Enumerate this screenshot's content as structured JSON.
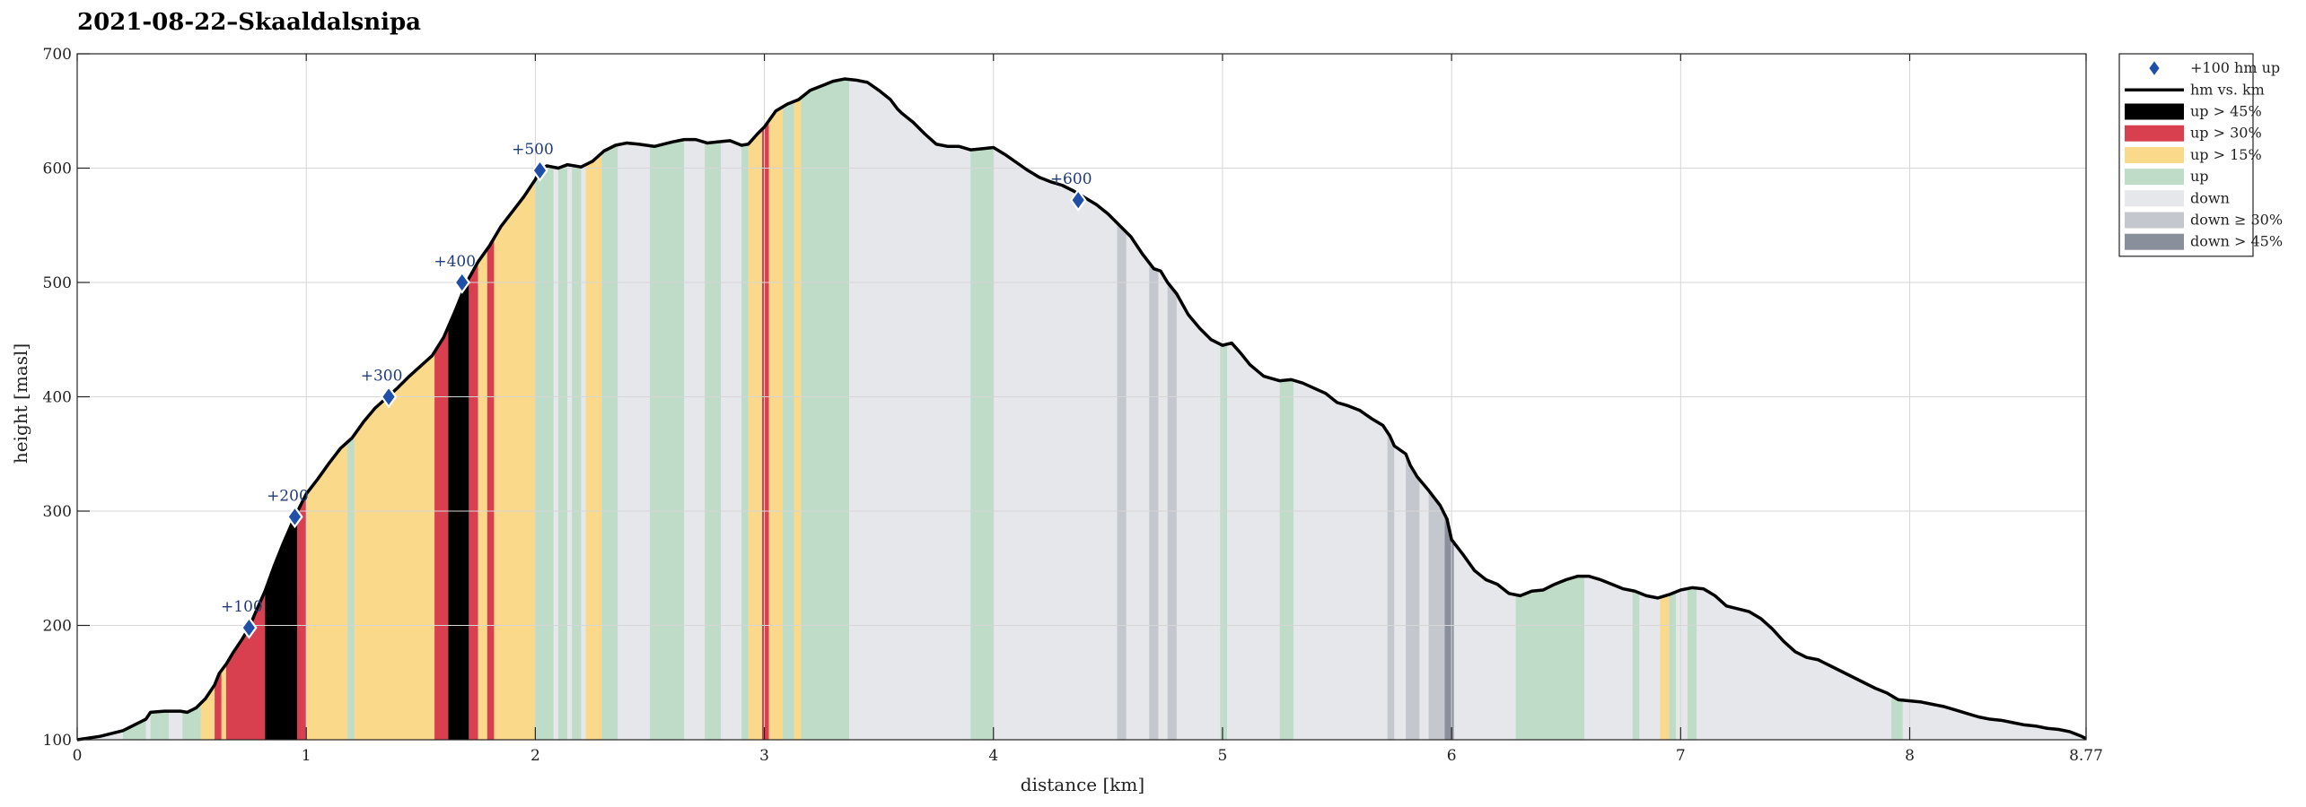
{
  "chart_data": {
    "type": "area",
    "title": "2021-08-22–Skaaldalsnipa",
    "xlabel": "distance [km]",
    "ylabel": "height [masl]",
    "xlim": [
      0,
      8.77
    ],
    "ylim": [
      100,
      700
    ],
    "x_ticks": [
      0,
      1,
      2,
      3,
      4,
      5,
      6,
      7,
      8,
      8.77
    ],
    "x_tick_labels": [
      "0",
      "1",
      "2",
      "3",
      "4",
      "5",
      "6",
      "7",
      "8",
      "8.77"
    ],
    "y_ticks": [
      100,
      200,
      300,
      400,
      500,
      600,
      700
    ],
    "grid": true,
    "legend_placement": "outside top-right",
    "legend": [
      {
        "label": "+100 hm up",
        "kind": "marker",
        "color": "#1f4fa8"
      },
      {
        "label": "hm vs. km",
        "kind": "line",
        "color": "#000000"
      },
      {
        "label": "up > 45%",
        "kind": "patch",
        "color": "#000000"
      },
      {
        "label": "up > 30%",
        "kind": "patch",
        "color": "#d9404f"
      },
      {
        "label": "up > 15%",
        "kind": "patch",
        "color": "#fbd98a"
      },
      {
        "label": "up",
        "kind": "patch",
        "color": "#bfdcc8"
      },
      {
        "label": "down",
        "kind": "patch",
        "color": "#e6e7ea"
      },
      {
        "label": "down ≥ 30%",
        "kind": "patch",
        "color": "#c5c7ce"
      },
      {
        "label": "down > 45%",
        "kind": "patch",
        "color": "#8a8f9c"
      }
    ],
    "colors": {
      "up45": "#000000",
      "up30": "#d9404f",
      "up15": "#fbd98a",
      "up": "#bfdcc8",
      "down": "#e6e7ea",
      "down30": "#c5c7ce",
      "down45": "#8a8f9c",
      "marker": "#1f4fa8",
      "line": "#000000"
    },
    "profile": [
      [
        0,
        100
      ],
      [
        0.1,
        103
      ],
      [
        0.2,
        108
      ],
      [
        0.3,
        118
      ],
      [
        0.32,
        124
      ],
      [
        0.38,
        125
      ],
      [
        0.45,
        125
      ],
      [
        0.48,
        124
      ],
      [
        0.52,
        128
      ],
      [
        0.56,
        136
      ],
      [
        0.6,
        148
      ],
      [
        0.62,
        158
      ],
      [
        0.65,
        166
      ],
      [
        0.68,
        176
      ],
      [
        0.72,
        188
      ],
      [
        0.75,
        198
      ],
      [
        0.78,
        212
      ],
      [
        0.82,
        230
      ],
      [
        0.86,
        252
      ],
      [
        0.9,
        272
      ],
      [
        0.95,
        295
      ],
      [
        1.0,
        315
      ],
      [
        1.05,
        328
      ],
      [
        1.1,
        342
      ],
      [
        1.15,
        355
      ],
      [
        1.2,
        364
      ],
      [
        1.25,
        378
      ],
      [
        1.3,
        390
      ],
      [
        1.35,
        399
      ],
      [
        1.4,
        408
      ],
      [
        1.45,
        418
      ],
      [
        1.5,
        427
      ],
      [
        1.55,
        436
      ],
      [
        1.6,
        452
      ],
      [
        1.65,
        475
      ],
      [
        1.7,
        500
      ],
      [
        1.75,
        518
      ],
      [
        1.8,
        532
      ],
      [
        1.85,
        549
      ],
      [
        1.9,
        562
      ],
      [
        1.95,
        575
      ],
      [
        2.0,
        590
      ],
      [
        2.02,
        598
      ],
      [
        2.05,
        602
      ],
      [
        2.1,
        600
      ],
      [
        2.14,
        603
      ],
      [
        2.2,
        601
      ],
      [
        2.25,
        606
      ],
      [
        2.3,
        615
      ],
      [
        2.35,
        620
      ],
      [
        2.4,
        622
      ],
      [
        2.45,
        621
      ],
      [
        2.52,
        619
      ],
      [
        2.6,
        623
      ],
      [
        2.65,
        625
      ],
      [
        2.7,
        625
      ],
      [
        2.75,
        622
      ],
      [
        2.8,
        623
      ],
      [
        2.85,
        624
      ],
      [
        2.9,
        620
      ],
      [
        2.93,
        621
      ],
      [
        2.97,
        630
      ],
      [
        3.0,
        636
      ],
      [
        3.05,
        650
      ],
      [
        3.1,
        656
      ],
      [
        3.15,
        660
      ],
      [
        3.2,
        668
      ],
      [
        3.25,
        672
      ],
      [
        3.3,
        676
      ],
      [
        3.35,
        678
      ],
      [
        3.4,
        677
      ],
      [
        3.45,
        675
      ],
      [
        3.5,
        668
      ],
      [
        3.55,
        660
      ],
      [
        3.58,
        652
      ],
      [
        3.6,
        648
      ],
      [
        3.65,
        640
      ],
      [
        3.7,
        630
      ],
      [
        3.75,
        621
      ],
      [
        3.8,
        619
      ],
      [
        3.85,
        619
      ],
      [
        3.9,
        616
      ],
      [
        3.95,
        617
      ],
      [
        4.0,
        618
      ],
      [
        4.05,
        612
      ],
      [
        4.1,
        605
      ],
      [
        4.15,
        598
      ],
      [
        4.2,
        592
      ],
      [
        4.25,
        588
      ],
      [
        4.3,
        585
      ],
      [
        4.35,
        580
      ],
      [
        4.4,
        574
      ],
      [
        4.45,
        568
      ],
      [
        4.5,
        560
      ],
      [
        4.55,
        550
      ],
      [
        4.6,
        540
      ],
      [
        4.65,
        525
      ],
      [
        4.7,
        512
      ],
      [
        4.73,
        510
      ],
      [
        4.76,
        500
      ],
      [
        4.8,
        490
      ],
      [
        4.85,
        472
      ],
      [
        4.9,
        460
      ],
      [
        4.95,
        450
      ],
      [
        5.0,
        445
      ],
      [
        5.04,
        447
      ],
      [
        5.08,
        438
      ],
      [
        5.12,
        428
      ],
      [
        5.18,
        418
      ],
      [
        5.25,
        414
      ],
      [
        5.3,
        415
      ],
      [
        5.35,
        412
      ],
      [
        5.45,
        403
      ],
      [
        5.5,
        395
      ],
      [
        5.55,
        392
      ],
      [
        5.6,
        388
      ],
      [
        5.65,
        381
      ],
      [
        5.7,
        375
      ],
      [
        5.73,
        366
      ],
      [
        5.75,
        357
      ],
      [
        5.8,
        350
      ],
      [
        5.82,
        340
      ],
      [
        5.85,
        330
      ],
      [
        5.9,
        318
      ],
      [
        5.95,
        305
      ],
      [
        5.98,
        293
      ],
      [
        6.0,
        275
      ],
      [
        6.05,
        262
      ],
      [
        6.1,
        248
      ],
      [
        6.15,
        240
      ],
      [
        6.2,
        236
      ],
      [
        6.25,
        228
      ],
      [
        6.3,
        226
      ],
      [
        6.35,
        230
      ],
      [
        6.4,
        231
      ],
      [
        6.45,
        236
      ],
      [
        6.5,
        240
      ],
      [
        6.55,
        243
      ],
      [
        6.6,
        243
      ],
      [
        6.65,
        240
      ],
      [
        6.7,
        236
      ],
      [
        6.75,
        232
      ],
      [
        6.8,
        230
      ],
      [
        6.85,
        226
      ],
      [
        6.9,
        224
      ],
      [
        6.95,
        227
      ],
      [
        7.0,
        231
      ],
      [
        7.05,
        233
      ],
      [
        7.1,
        232
      ],
      [
        7.15,
        226
      ],
      [
        7.2,
        217
      ],
      [
        7.3,
        212
      ],
      [
        7.35,
        206
      ],
      [
        7.4,
        197
      ],
      [
        7.45,
        186
      ],
      [
        7.5,
        177
      ],
      [
        7.55,
        172
      ],
      [
        7.6,
        170
      ],
      [
        7.65,
        165
      ],
      [
        7.7,
        160
      ],
      [
        7.75,
        155
      ],
      [
        7.8,
        150
      ],
      [
        7.85,
        145
      ],
      [
        7.9,
        141
      ],
      [
        7.95,
        135
      ],
      [
        8.0,
        134
      ],
      [
        8.05,
        133
      ],
      [
        8.1,
        131
      ],
      [
        8.15,
        129
      ],
      [
        8.2,
        126
      ],
      [
        8.25,
        123
      ],
      [
        8.3,
        120
      ],
      [
        8.35,
        118
      ],
      [
        8.4,
        117
      ],
      [
        8.45,
        115
      ],
      [
        8.5,
        113
      ],
      [
        8.55,
        112
      ],
      [
        8.6,
        110
      ],
      [
        8.65,
        109
      ],
      [
        8.7,
        107
      ],
      [
        8.75,
        103
      ],
      [
        8.77,
        101
      ]
    ],
    "segments": [
      [
        0.2,
        0.3,
        "up"
      ],
      [
        0.3,
        0.32,
        "down"
      ],
      [
        0.32,
        0.36,
        "up"
      ],
      [
        0.36,
        0.4,
        "up"
      ],
      [
        0.4,
        0.46,
        "down"
      ],
      [
        0.46,
        0.54,
        "up"
      ],
      [
        0.54,
        0.6,
        "up15"
      ],
      [
        0.6,
        0.63,
        "up30"
      ],
      [
        0.63,
        0.65,
        "up15"
      ],
      [
        0.65,
        0.82,
        "up30"
      ],
      [
        0.82,
        0.96,
        "up45"
      ],
      [
        0.96,
        1.0,
        "up30"
      ],
      [
        1.0,
        1.18,
        "up15"
      ],
      [
        1.18,
        1.21,
        "up"
      ],
      [
        1.21,
        1.56,
        "up15"
      ],
      [
        1.56,
        1.62,
        "up30"
      ],
      [
        1.62,
        1.71,
        "up45"
      ],
      [
        1.71,
        1.75,
        "up30"
      ],
      [
        1.75,
        1.79,
        "up15"
      ],
      [
        1.79,
        1.82,
        "up30"
      ],
      [
        1.82,
        2.0,
        "up15"
      ],
      [
        2.0,
        2.08,
        "up"
      ],
      [
        2.08,
        2.1,
        "down"
      ],
      [
        2.1,
        2.14,
        "up"
      ],
      [
        2.14,
        2.16,
        "down"
      ],
      [
        2.16,
        2.2,
        "up"
      ],
      [
        2.2,
        2.22,
        "down"
      ],
      [
        2.22,
        2.29,
        "up15"
      ],
      [
        2.29,
        2.36,
        "up"
      ],
      [
        2.36,
        2.5,
        "down"
      ],
      [
        2.5,
        2.65,
        "up"
      ],
      [
        2.65,
        2.74,
        "down"
      ],
      [
        2.74,
        2.81,
        "up"
      ],
      [
        2.81,
        2.9,
        "down"
      ],
      [
        2.9,
        2.93,
        "up"
      ],
      [
        2.93,
        2.99,
        "up15"
      ],
      [
        2.99,
        3.02,
        "up30"
      ],
      [
        3.02,
        3.08,
        "up15"
      ],
      [
        3.08,
        3.13,
        "up"
      ],
      [
        3.13,
        3.16,
        "up15"
      ],
      [
        3.16,
        3.37,
        "up"
      ],
      [
        3.37,
        3.9,
        "down"
      ],
      [
        3.9,
        4.0,
        "up"
      ],
      [
        4.0,
        4.54,
        "down"
      ],
      [
        4.54,
        4.58,
        "down30"
      ],
      [
        4.58,
        4.68,
        "down"
      ],
      [
        4.68,
        4.72,
        "down30"
      ],
      [
        4.72,
        4.76,
        "down"
      ],
      [
        4.76,
        4.8,
        "down30"
      ],
      [
        4.8,
        4.99,
        "down"
      ],
      [
        4.99,
        5.02,
        "up"
      ],
      [
        5.02,
        5.25,
        "down"
      ],
      [
        5.25,
        5.31,
        "up"
      ],
      [
        5.31,
        5.72,
        "down"
      ],
      [
        5.72,
        5.75,
        "down30"
      ],
      [
        5.75,
        5.8,
        "down"
      ],
      [
        5.8,
        5.86,
        "down30"
      ],
      [
        5.86,
        5.9,
        "down"
      ],
      [
        5.9,
        5.97,
        "down30"
      ],
      [
        5.97,
        6.01,
        "down45"
      ],
      [
        6.01,
        6.28,
        "down"
      ],
      [
        6.28,
        6.58,
        "up"
      ],
      [
        6.58,
        6.79,
        "down"
      ],
      [
        6.79,
        6.82,
        "up"
      ],
      [
        6.82,
        6.91,
        "down"
      ],
      [
        6.91,
        6.95,
        "up15"
      ],
      [
        6.95,
        6.98,
        "up"
      ],
      [
        6.98,
        7.03,
        "down"
      ],
      [
        7.03,
        7.07,
        "up"
      ],
      [
        7.07,
        7.92,
        "down"
      ],
      [
        7.92,
        7.97,
        "up"
      ],
      [
        7.97,
        8.77,
        "down"
      ]
    ],
    "markers": [
      {
        "x": 0.75,
        "y": 198,
        "label": "+100"
      },
      {
        "x": 0.95,
        "y": 295,
        "label": "+200"
      },
      {
        "x": 1.36,
        "y": 400,
        "label": "+300"
      },
      {
        "x": 1.68,
        "y": 500,
        "label": "+400"
      },
      {
        "x": 2.02,
        "y": 598,
        "label": "+500"
      },
      {
        "x": 4.37,
        "y": 572,
        "label": "+600"
      }
    ]
  }
}
